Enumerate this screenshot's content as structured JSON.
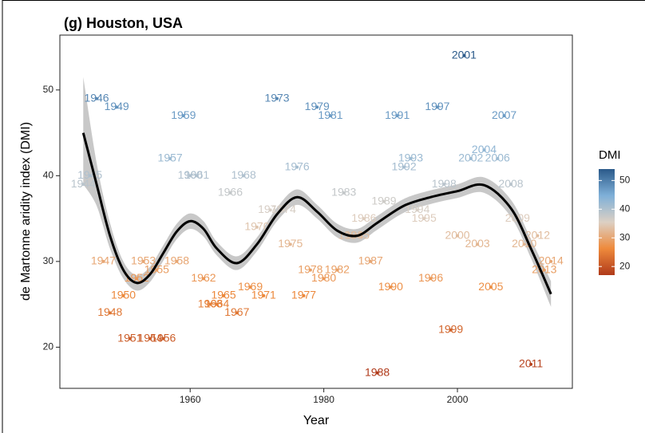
{
  "chart_data": {
    "type": "scatter",
    "title": "(g) Houston, USA",
    "xlabel": "Year",
    "ylabel": "de Martonne aridity index (DMI)",
    "xlim": [
      1940.5,
      2017.2
    ],
    "ylim": [
      15.2,
      56.4
    ],
    "xticks": [
      1960,
      1980,
      2000
    ],
    "yticks": [
      20,
      30,
      40,
      50
    ],
    "x": [
      1944,
      1945,
      1946,
      1947,
      1948,
      1949,
      1950,
      1951,
      1952,
      1953,
      1954,
      1955,
      1956,
      1957,
      1958,
      1959,
      1960,
      1961,
      1962,
      1963,
      1964,
      1965,
      1966,
      1967,
      1968,
      1969,
      1970,
      1971,
      1972,
      1973,
      1974,
      1975,
      1976,
      1977,
      1978,
      1979,
      1980,
      1981,
      1982,
      1983,
      1984,
      1985,
      1986,
      1987,
      1988,
      1989,
      1990,
      1991,
      1992,
      1993,
      1994,
      1995,
      1996,
      1997,
      1998,
      1999,
      2000,
      2001,
      2002,
      2003,
      2004,
      2005,
      2006,
      2007,
      2008,
      2009,
      2010,
      2011,
      2012,
      2013,
      2014
    ],
    "values": [
      39,
      40,
      49,
      30,
      24,
      48,
      26,
      21,
      28,
      30,
      21,
      29,
      21,
      42,
      30,
      47,
      40,
      40,
      28,
      25,
      25,
      26,
      38,
      24,
      40,
      27,
      34,
      26,
      36,
      49,
      36,
      32,
      41,
      26,
      29,
      48,
      28,
      47,
      29,
      38,
      33,
      33,
      35,
      30,
      17,
      37,
      27,
      47,
      41,
      42,
      36,
      35,
      28,
      48,
      39,
      22,
      33,
      54,
      42,
      32,
      43,
      27,
      42,
      47,
      39,
      35,
      32,
      18,
      33,
      29,
      30
    ],
    "smooth": {
      "x": [
        1944,
        1946,
        1948,
        1950,
        1952,
        1954,
        1956,
        1958,
        1960,
        1962,
        1964,
        1967,
        1970,
        1973,
        1976,
        1979,
        1982,
        1985,
        1988,
        1992,
        1996,
        2000,
        2004,
        2008,
        2011,
        2014
      ],
      "values": [
        45,
        39,
        33,
        29,
        27.5,
        28.5,
        31,
        33.5,
        34.7,
        33.8,
        31.5,
        29.8,
        32,
        35.5,
        37.5,
        35.8,
        33.6,
        33,
        34.5,
        36.5,
        37.5,
        38.2,
        38.9,
        36.2,
        31.5,
        26.2
      ],
      "lower": [
        39,
        36.5,
        31.5,
        28,
        26.6,
        27.6,
        30.1,
        32.6,
        33.8,
        32.9,
        30.7,
        29,
        31.2,
        34.7,
        36.6,
        35,
        32.8,
        32.2,
        33.7,
        35.7,
        36.7,
        37.4,
        38,
        35.2,
        30.4,
        24.7
      ],
      "upper": [
        51.5,
        41.5,
        34.5,
        30,
        28.4,
        29.4,
        31.9,
        34.4,
        35.6,
        34.7,
        32.3,
        30.6,
        32.8,
        36.3,
        38.4,
        36.6,
        34.4,
        33.8,
        35.3,
        37.3,
        38.3,
        39,
        39.8,
        37.2,
        32.6,
        27.7
      ]
    },
    "colorbar": {
      "title": "DMI",
      "lim": [
        17,
        54
      ],
      "ticks": [
        20,
        30,
        40,
        50
      ],
      "colors": [
        "#b03a1a",
        "#ee8a3c",
        "#dcd0c4",
        "#7fb0d8",
        "#2b5a8a"
      ]
    }
  }
}
